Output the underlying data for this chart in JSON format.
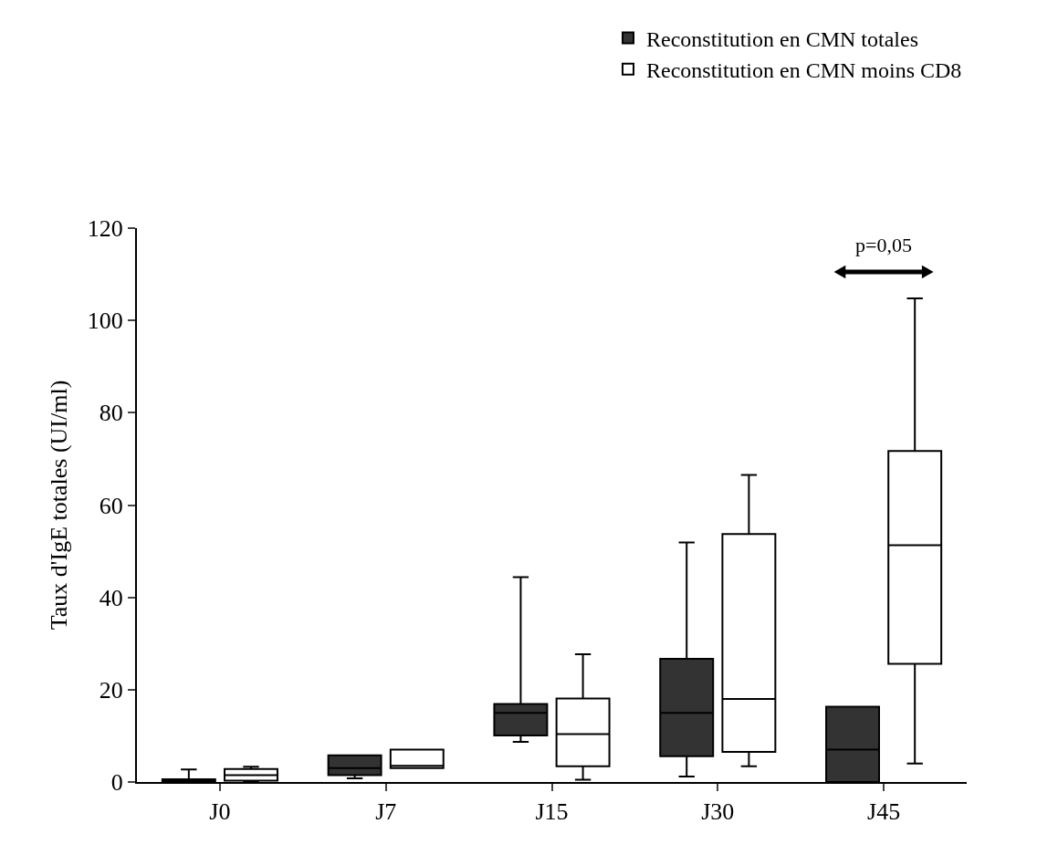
{
  "chart_data": {
    "type": "box",
    "ylabel": "Taux d'IgE totales (UI/ml)",
    "categories": [
      "J0",
      "J7",
      "J15",
      "J30",
      "J45"
    ],
    "series": [
      {
        "name": "Reconstitution en CMN totales",
        "color": "#333333",
        "boxes": [
          {
            "low": 0,
            "q1": 0,
            "median": 0.3,
            "q3": 0.6,
            "high": 2.7
          },
          {
            "low": 0.8,
            "q1": 1.5,
            "median": 3,
            "q3": 5.8,
            "high": 5.8
          },
          {
            "low": 8.7,
            "q1": 10.1,
            "median": 15,
            "q3": 16.9,
            "high": 44.4
          },
          {
            "low": 1.2,
            "q1": 5.6,
            "median": 15,
            "q3": 26.7,
            "high": 51.9
          },
          {
            "low": 0,
            "q1": 0,
            "median": 7,
            "q3": 16.3,
            "high": 16.3
          }
        ]
      },
      {
        "name": "Reconstitution en CMN moins CD8",
        "color": "#ffffff",
        "boxes": [
          {
            "low": 0,
            "q1": 0.3,
            "median": 1.5,
            "q3": 2.8,
            "high": 3.3
          },
          {
            "low": 3,
            "q1": 3,
            "median": 3.5,
            "q3": 7,
            "high": 7
          },
          {
            "low": 0.5,
            "q1": 3.4,
            "median": 10.4,
            "q3": 18.1,
            "high": 27.7
          },
          {
            "low": 3.4,
            "q1": 6.5,
            "median": 18,
            "q3": 53.7,
            "high": 66.5
          },
          {
            "low": 4,
            "q1": 25.6,
            "median": 51.3,
            "q3": 71.7,
            "high": 104.8
          }
        ]
      }
    ],
    "ylim": [
      0,
      120
    ],
    "yticks": [
      0,
      20,
      40,
      60,
      80,
      100,
      120
    ],
    "legend": "top right",
    "annotations": [
      "p=0,05"
    ]
  }
}
